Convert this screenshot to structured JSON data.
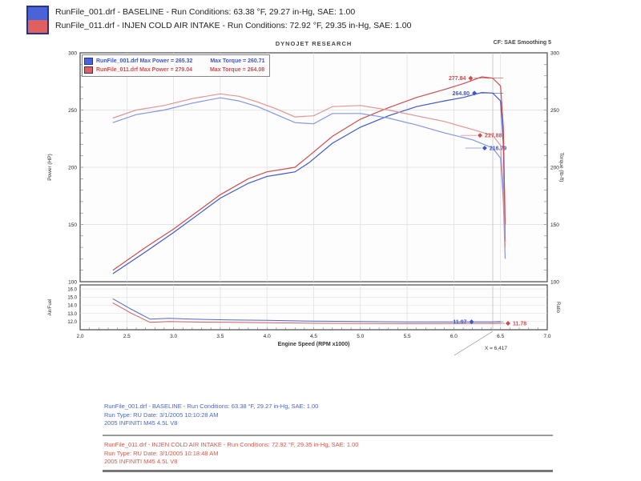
{
  "header": {
    "runs": [
      {
        "text": "RunFile_001.drf - BASELINE  -  Run Conditions: 63.38 °F, 29.27 in-Hg, SAE: 1.00",
        "color": "#4a63d8"
      },
      {
        "text": "RunFile_011.drf - INJEN COLD AIR INTAKE  -  Run Conditions: 72.92 °F, 29.35 in-Hg, SAE: 1.00",
        "color": "#e05f5f"
      }
    ]
  },
  "chart": {
    "brand": "DYNOJET RESEARCH",
    "cf_label": "CF: SAE   Smoothing 5",
    "inner_legend": [
      {
        "file": "RunFile_001.drf",
        "power": "Max Power = 265.32",
        "torque": "Max Torque = 260.71",
        "color": "#3f58c9"
      },
      {
        "file": "RunFile_011.drf",
        "power": "Max Power = 279.04",
        "torque": "Max Torque = 264.08",
        "color": "#cf4d4d"
      }
    ]
  },
  "chart_data": {
    "type": "line",
    "title": "DYNOJET RESEARCH",
    "xlabel": "Engine Speed (RPM x1000)",
    "x_range": [
      2.0,
      7.0
    ],
    "x_ticks": [
      2.0,
      2.5,
      3.0,
      3.5,
      4.0,
      4.5,
      5.0,
      5.5,
      6.0,
      6.5,
      7.0
    ],
    "cursor_rpm": 6.417,
    "cursor_label": "X = 6,417",
    "grid": true,
    "main": {
      "y_left_label": "Power (HP)",
      "y_right_label": "Torque (lb-ft)",
      "y_range": [
        100,
        300
      ],
      "y_ticks": [
        300,
        250,
        200,
        150,
        100
      ],
      "series": [
        {
          "name": "power-baseline",
          "color": "#3f58c9",
          "opacity": 1,
          "points": [
            [
              2.35,
              107
            ],
            [
              2.7,
              126
            ],
            [
              3.0,
              143
            ],
            [
              3.3,
              161
            ],
            [
              3.5,
              173
            ],
            [
              3.8,
              186
            ],
            [
              4.0,
              192
            ],
            [
              4.15,
              194
            ],
            [
              4.3,
              196
            ],
            [
              4.45,
              204
            ],
            [
              4.7,
              221
            ],
            [
              5.0,
              235
            ],
            [
              5.3,
              245
            ],
            [
              5.6,
              253
            ],
            [
              5.9,
              258
            ],
            [
              6.1,
              261
            ],
            [
              6.3,
              265.3
            ],
            [
              6.417,
              264.8
            ],
            [
              6.5,
              258
            ],
            [
              6.53,
              220
            ],
            [
              6.55,
              135
            ]
          ]
        },
        {
          "name": "power-injen",
          "color": "#cf4d4d",
          "opacity": 1,
          "points": [
            [
              2.35,
              110
            ],
            [
              2.7,
              130
            ],
            [
              3.0,
              146
            ],
            [
              3.3,
              164
            ],
            [
              3.5,
              176
            ],
            [
              3.8,
              190
            ],
            [
              4.0,
              196
            ],
            [
              4.15,
              198
            ],
            [
              4.3,
              200
            ],
            [
              4.45,
              210
            ],
            [
              4.7,
              227
            ],
            [
              5.0,
              242
            ],
            [
              5.3,
              252
            ],
            [
              5.6,
              261
            ],
            [
              5.9,
              268
            ],
            [
              6.1,
              273
            ],
            [
              6.3,
              279.0
            ],
            [
              6.417,
              277.8
            ],
            [
              6.5,
              271
            ],
            [
              6.53,
              235
            ],
            [
              6.55,
              150
            ]
          ]
        },
        {
          "name": "torque-baseline",
          "color": "#7d90e0",
          "opacity": 0.95,
          "points": [
            [
              2.35,
              239
            ],
            [
              2.6,
              246
            ],
            [
              2.9,
              250
            ],
            [
              3.2,
              256
            ],
            [
              3.5,
              260.7
            ],
            [
              3.7,
              258
            ],
            [
              3.9,
              253
            ],
            [
              4.1,
              246
            ],
            [
              4.3,
              239
            ],
            [
              4.5,
              238
            ],
            [
              4.7,
              247
            ],
            [
              5.0,
              247
            ],
            [
              5.3,
              243
            ],
            [
              5.6,
              237
            ],
            [
              5.9,
              230
            ],
            [
              6.2,
              224
            ],
            [
              6.417,
              216.8
            ],
            [
              6.5,
              208
            ],
            [
              6.53,
              170
            ],
            [
              6.55,
              120
            ]
          ]
        },
        {
          "name": "torque-injen",
          "color": "#e08f8f",
          "opacity": 0.95,
          "points": [
            [
              2.35,
              243
            ],
            [
              2.6,
              250
            ],
            [
              2.9,
              254
            ],
            [
              3.2,
              260
            ],
            [
              3.5,
              264.1
            ],
            [
              3.7,
              262
            ],
            [
              3.9,
              257
            ],
            [
              4.1,
              251
            ],
            [
              4.3,
              244
            ],
            [
              4.5,
              245
            ],
            [
              4.7,
              253
            ],
            [
              5.0,
              254
            ],
            [
              5.3,
              250
            ],
            [
              5.6,
              245
            ],
            [
              5.9,
              240
            ],
            [
              6.2,
              233
            ],
            [
              6.417,
              227.9
            ],
            [
              6.5,
              219
            ],
            [
              6.53,
              180
            ],
            [
              6.55,
              130
            ]
          ]
        }
      ],
      "annotations": [
        {
          "label": "277.84",
          "x": 6.18,
          "y": 277.84,
          "side": "left",
          "color": "#cf4d4d"
        },
        {
          "label": "264.80",
          "x": 6.22,
          "y": 264.8,
          "side": "left",
          "color": "#3f58c9"
        },
        {
          "label": "227.88",
          "x": 6.28,
          "y": 227.88,
          "side": "right",
          "color": "#cf4d4d"
        },
        {
          "label": "216.79",
          "x": 6.33,
          "y": 216.79,
          "side": "right",
          "color": "#3f58c9"
        }
      ]
    },
    "afr": {
      "y_left_label": "Air/Fuel",
      "y_right_label": "Ratio",
      "y_range": [
        11,
        16.5
      ],
      "y_ticks": [
        16.0,
        15.0,
        14.0,
        13.0,
        12.0
      ],
      "series": [
        {
          "name": "afr-baseline",
          "color": "#3f58c9",
          "opacity": 0.9,
          "points": [
            [
              2.35,
              14.8
            ],
            [
              2.55,
              13.5
            ],
            [
              2.75,
              12.3
            ],
            [
              2.95,
              12.4
            ],
            [
              3.2,
              12.3
            ],
            [
              3.6,
              12.2
            ],
            [
              4.0,
              12.15
            ],
            [
              4.5,
              12.05
            ],
            [
              5.0,
              12.0
            ],
            [
              5.5,
              11.95
            ],
            [
              6.0,
              11.95
            ],
            [
              6.417,
              11.97
            ],
            [
              6.5,
              12.0
            ]
          ]
        },
        {
          "name": "afr-injen",
          "color": "#cf4d4d",
          "opacity": 0.9,
          "points": [
            [
              2.35,
              14.3
            ],
            [
              2.55,
              13.0
            ],
            [
              2.75,
              11.9
            ],
            [
              2.95,
              12.0
            ],
            [
              3.2,
              11.95
            ],
            [
              3.6,
              11.9
            ],
            [
              4.0,
              11.85
            ],
            [
              4.5,
              11.8
            ],
            [
              5.0,
              11.78
            ],
            [
              5.5,
              11.75
            ],
            [
              6.0,
              11.76
            ],
            [
              6.417,
              11.78
            ],
            [
              6.5,
              11.8
            ]
          ]
        }
      ],
      "annotations": [
        {
          "label": "11.97",
          "x": 6.19,
          "y": 11.97,
          "side": "left",
          "color": "#3f58c9"
        },
        {
          "label": "11.78",
          "x": 6.58,
          "y": 11.78,
          "side": "right",
          "color": "#cf4d4d"
        }
      ]
    }
  },
  "footer": {
    "baseline_block": {
      "color": "#4a66c8",
      "lines": [
        "RunFile_001.drf - BASELINE  -  Run Conditions: 63.38 °F, 29.27 in-Hg, SAE: 1.00",
        "Run Type: RU  Date: 3/1/2005 10:10:28 AM",
        "2005 INFINITI M45 4.5L V8"
      ]
    },
    "injen_block": {
      "color": "#d4574a",
      "lines": [
        "RunFile_011.drf - INJEN COLD AIR INTAKE  -  Run Conditions: 72.92 °F, 29.35 in-Hg, SAE: 1.00",
        "Run Type: RU  Date: 3/1/2005 10:18:48 AM",
        "2005 INFINITI M45 4.5L V8"
      ]
    }
  }
}
